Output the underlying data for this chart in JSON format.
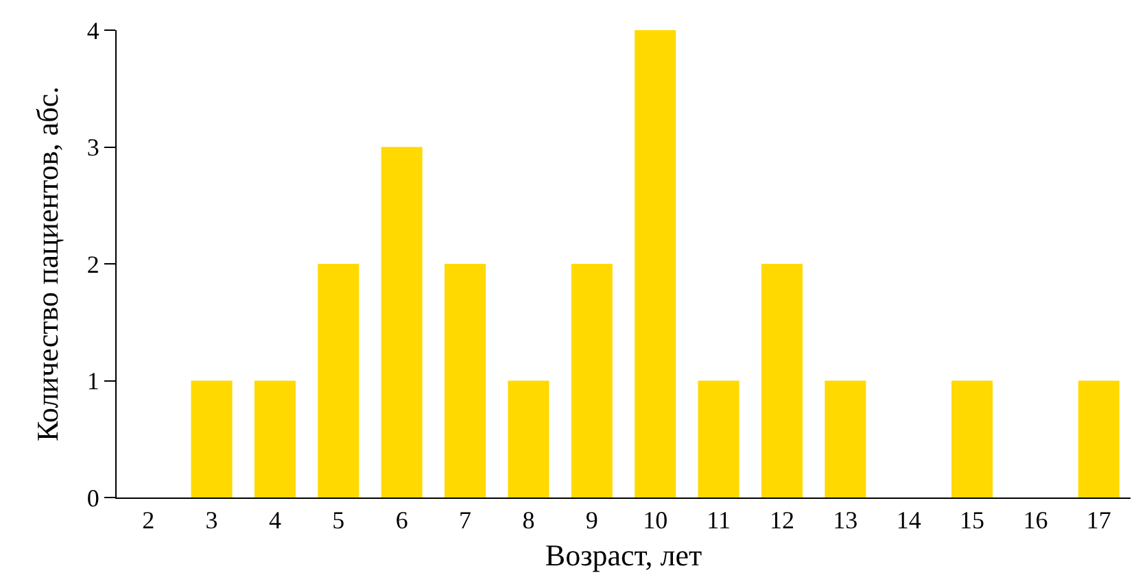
{
  "chart_data": {
    "type": "bar",
    "xlabel": "Возраст, лет",
    "ylabel": "Количество пациентов, абс.",
    "categories": [
      "2",
      "3",
      "4",
      "5",
      "6",
      "7",
      "8",
      "9",
      "10",
      "11",
      "12",
      "13",
      "14",
      "15",
      "16",
      "17"
    ],
    "values": [
      0,
      1,
      1,
      2,
      3,
      2,
      1,
      2,
      4,
      1,
      2,
      1,
      0,
      1,
      0,
      1
    ],
    "color": "#ffd900",
    "ylim": [
      0,
      4
    ],
    "yticks": [
      0,
      1,
      2,
      3,
      4
    ],
    "grid": false,
    "legend": false
  }
}
